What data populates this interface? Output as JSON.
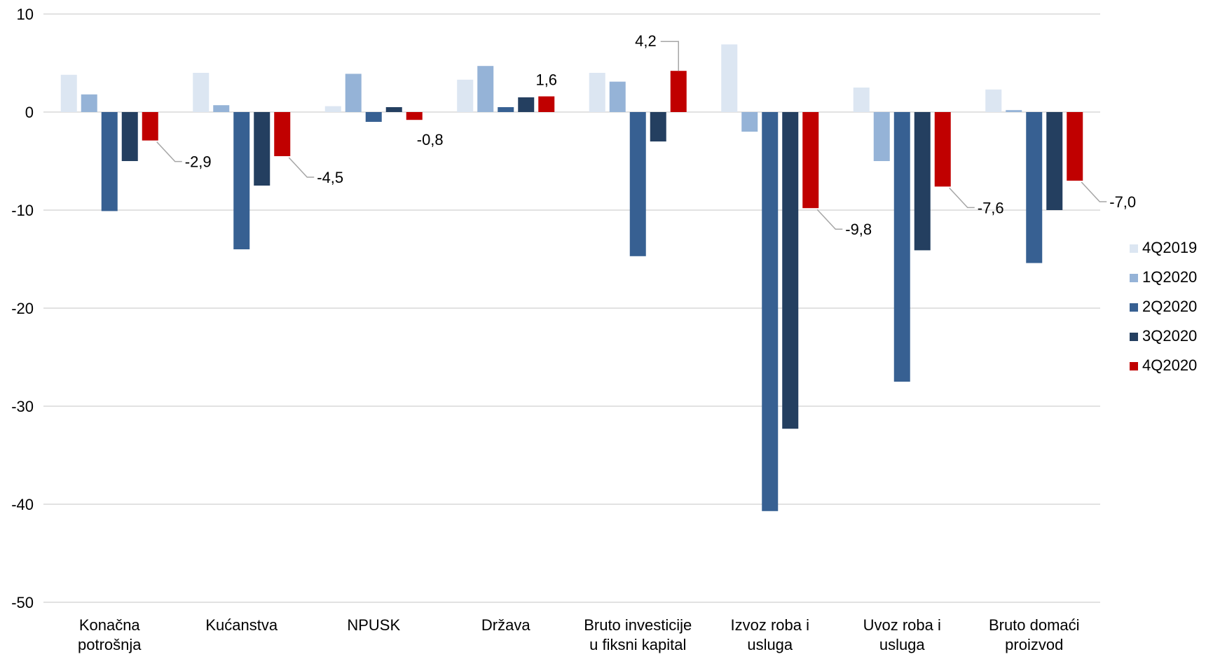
{
  "chart_data": {
    "type": "bar",
    "title": "",
    "xlabel": "",
    "ylabel": "",
    "ylim": [
      -50,
      10
    ],
    "yticks": [
      10,
      0,
      -10,
      -20,
      -30,
      -40,
      -50
    ],
    "grid": true,
    "legend_position": "right",
    "categories": [
      [
        "Konačna",
        "potrošnja"
      ],
      [
        "Kućanstva"
      ],
      [
        "NPUSK"
      ],
      [
        "Država"
      ],
      [
        "Bruto investicije",
        "u fiksni kapital"
      ],
      [
        "Izvoz roba i",
        "usluga"
      ],
      [
        "Uvoz roba i",
        "usluga"
      ],
      [
        "Bruto domaći",
        "proizvod"
      ]
    ],
    "series": [
      {
        "name": "4Q2019",
        "color": "#dce6f2",
        "values": [
          3.8,
          4.0,
          0.6,
          3.3,
          4.0,
          6.9,
          2.5,
          2.3
        ]
      },
      {
        "name": "1Q2020",
        "color": "#95b3d7",
        "values": [
          1.8,
          0.7,
          3.9,
          4.7,
          3.1,
          -2.0,
          -5.0,
          0.2
        ]
      },
      {
        "name": "2Q2020",
        "color": "#376092",
        "values": [
          -10.1,
          -14.0,
          -1.0,
          0.5,
          -14.7,
          -40.7,
          -27.5,
          -15.4
        ]
      },
      {
        "name": "3Q2020",
        "color": "#243f60",
        "values": [
          -5.0,
          -7.5,
          0.5,
          1.5,
          -3.0,
          -32.3,
          -14.1,
          -10.0
        ]
      },
      {
        "name": "4Q2020",
        "color": "#c00000",
        "values": [
          -2.9,
          -4.5,
          -0.8,
          1.6,
          4.2,
          -9.8,
          -7.6,
          -7.0
        ]
      }
    ],
    "data_labels": {
      "series": "4Q2020",
      "texts": [
        "-2,9",
        "-4,5",
        "-0,8",
        "1,6",
        "4,2",
        "-9,8",
        "-7,6",
        "-7,0"
      ]
    }
  }
}
